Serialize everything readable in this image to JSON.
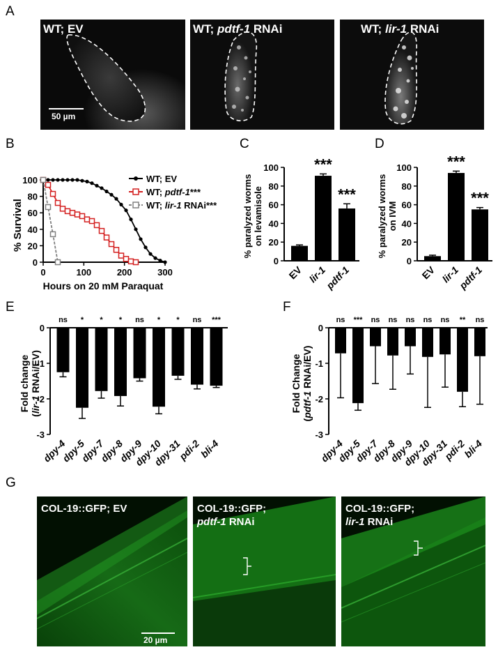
{
  "panels": {
    "A": {
      "letter": "A",
      "images": [
        {
          "label_prefix": "WT; ",
          "label_gene": "",
          "label_suffix": "EV"
        },
        {
          "label_prefix": "WT; ",
          "label_gene": "pdtf-1",
          "label_suffix": " RNAi"
        },
        {
          "label_prefix": "WT; ",
          "label_gene": "lir-1",
          "label_suffix": " RNAi"
        }
      ],
      "scalebar": "50 µm"
    },
    "B": {
      "letter": "B"
    },
    "C": {
      "letter": "C"
    },
    "D": {
      "letter": "D"
    },
    "E": {
      "letter": "E"
    },
    "F": {
      "letter": "F"
    },
    "G": {
      "letter": "G",
      "images": [
        {
          "line1": "COL-19::GFP; EV",
          "line2_gene": "",
          "line2_suffix": ""
        },
        {
          "line1": "COL-19::GFP;",
          "line2_gene": "pdtf-1",
          "line2_suffix": " RNAi"
        },
        {
          "line1": "COL-19::GFP;",
          "line2_gene": "lir-1",
          "line2_suffix": " RNAi"
        }
      ],
      "scalebar": "20 µm"
    }
  },
  "colors": {
    "ev": "#000000",
    "pdtf1": "#d42020",
    "lir1": "#808080",
    "green": "#1a9a1a"
  },
  "chart_data": [
    {
      "panel": "B",
      "type": "line",
      "xlabel": "Hours on 20 mM Paraquat",
      "ylabel": "% Survival",
      "xlim": [
        0,
        300
      ],
      "ylim": [
        0,
        100
      ],
      "xticks": [
        0,
        100,
        200,
        300
      ],
      "yticks": [
        0,
        20,
        40,
        60,
        80,
        100
      ],
      "series": [
        {
          "name": "WT; EV",
          "label_prefix": "WT; ",
          "label_gene": "",
          "label_suffix": "EV",
          "color": "#000000",
          "x": [
            0,
            12,
            24,
            36,
            48,
            60,
            72,
            84,
            96,
            108,
            120,
            132,
            144,
            156,
            168,
            180,
            192,
            204,
            216,
            228,
            240,
            252,
            264,
            276,
            288,
            300
          ],
          "y": [
            100,
            100,
            100,
            100,
            100,
            100,
            100,
            100,
            99,
            98,
            96,
            93,
            90,
            86,
            82,
            77,
            70,
            63,
            52,
            40,
            28,
            18,
            10,
            5,
            2,
            0
          ]
        },
        {
          "name": "WT; pdtf-1***",
          "label_prefix": "WT; ",
          "label_gene": "pdtf-1",
          "label_suffix": "***",
          "color": "#d42020",
          "x": [
            0,
            12,
            24,
            36,
            48,
            60,
            72,
            84,
            96,
            108,
            120,
            132,
            144,
            156,
            168,
            180,
            192,
            204,
            216,
            228
          ],
          "y": [
            100,
            94,
            83,
            72,
            65,
            62,
            60,
            58,
            56,
            52,
            50,
            45,
            38,
            30,
            22,
            15,
            8,
            4,
            1,
            0
          ]
        },
        {
          "name": "WT; lir-1 RNAi***",
          "label_prefix": "WT; ",
          "label_gene": "lir-1",
          "label_suffix": " RNAi***",
          "color": "#808080",
          "x": [
            0,
            12,
            24,
            36
          ],
          "y": [
            100,
            67,
            34,
            0
          ]
        }
      ]
    },
    {
      "panel": "C",
      "type": "bar",
      "ylabel_line1": "% paralyzed worms",
      "ylabel_line2": "on levamisole",
      "ylim": [
        0,
        100
      ],
      "yticks": [
        0,
        20,
        40,
        60,
        80,
        100
      ],
      "categories": [
        "EV",
        "lir-1",
        "pdtf-1"
      ],
      "italic": [
        false,
        true,
        true
      ],
      "values": [
        16,
        91,
        56
      ],
      "errors": [
        1,
        2,
        5
      ],
      "significance": [
        "",
        "***",
        "***"
      ]
    },
    {
      "panel": "D",
      "type": "bar",
      "ylabel_line1": "% paralyzed worms",
      "ylabel_line2": "on IVM",
      "ylim": [
        0,
        100
      ],
      "yticks": [
        0,
        20,
        40,
        60,
        80,
        100
      ],
      "categories": [
        "EV",
        "lir-1",
        "pdtf-1"
      ],
      "italic": [
        false,
        true,
        true
      ],
      "values": [
        5,
        94,
        55
      ],
      "errors": [
        1,
        2,
        2
      ],
      "significance": [
        "",
        "***",
        "***"
      ]
    },
    {
      "panel": "E",
      "type": "bar",
      "ylabel_line1": "Fold change",
      "ylabel_line2_prefix": "(",
      "ylabel_line2_gene": "lir-1",
      "ylabel_line2_suffix": " RNAi/EV)",
      "ylim": [
        -3,
        0
      ],
      "yticks": [
        0,
        -1,
        -2,
        -3
      ],
      "categories": [
        "dpy-4",
        "dpy-5",
        "dpy-7",
        "dpy-8",
        "dpy-9",
        "dpy-10",
        "dpy-31",
        "pdi-2",
        "bli-4"
      ],
      "values": [
        -1.25,
        -2.25,
        -1.78,
        -1.92,
        -1.42,
        -2.22,
        -1.35,
        -1.6,
        -1.63
      ],
      "errors": [
        0.13,
        0.3,
        0.2,
        0.28,
        0.08,
        0.2,
        0.1,
        0.12,
        0.05
      ],
      "significance": [
        "ns",
        "*",
        "*",
        "*",
        "ns",
        "*",
        "*",
        "ns",
        "***"
      ]
    },
    {
      "panel": "F",
      "type": "bar",
      "ylabel_line1": "Fold Change",
      "ylabel_line2_prefix": "(",
      "ylabel_line2_gene": "pdtf-1",
      "ylabel_line2_suffix": " RNAi/EV)",
      "ylim": [
        -3,
        0
      ],
      "yticks": [
        0,
        -1,
        -2,
        -3
      ],
      "categories": [
        "dpy-4",
        "dpy-5",
        "dpy-7",
        "dpy-8",
        "dpy-9",
        "dpy-10",
        "dpy-31",
        "pdi-2",
        "bli-4"
      ],
      "values": [
        -0.72,
        -2.12,
        -0.52,
        -0.78,
        -0.52,
        -0.82,
        -0.75,
        -1.8,
        -0.8
      ],
      "errors": [
        1.25,
        0.2,
        1.05,
        0.95,
        0.78,
        1.42,
        0.92,
        0.42,
        1.35
      ],
      "significance": [
        "ns",
        "***",
        "ns",
        "ns",
        "ns",
        "ns",
        "ns",
        "**",
        "ns"
      ]
    }
  ]
}
